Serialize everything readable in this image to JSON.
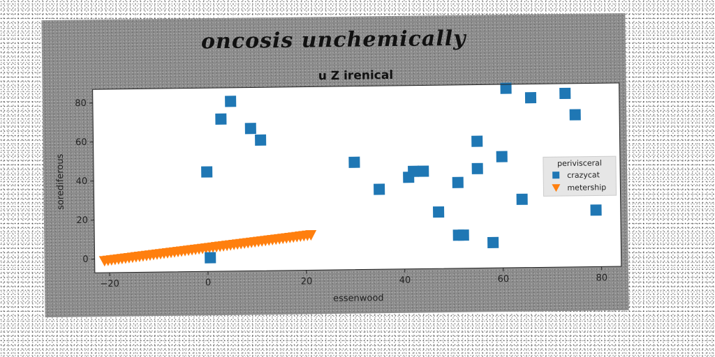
{
  "chart_data": {
    "type": "scatter",
    "suptitle": "oncosis unchemically",
    "title": "u Z irenical",
    "xlabel": "essenwood",
    "ylabel": "sorediferous",
    "xlim": [
      -23,
      84
    ],
    "ylim": [
      -7,
      87
    ],
    "xticks": [
      -20,
      0,
      20,
      40,
      60,
      80
    ],
    "yticks": [
      0,
      20,
      40,
      60,
      80
    ],
    "legend": {
      "title": "perivisceral",
      "placement": "center-right"
    },
    "series": [
      {
        "name": "crazycat",
        "marker": "square",
        "color": "#1f77b4",
        "points": [
          [
            0,
            44
          ],
          [
            3,
            71
          ],
          [
            5,
            80
          ],
          [
            9,
            66
          ],
          [
            11,
            60
          ],
          [
            0.5,
            0
          ],
          [
            30,
            48
          ],
          [
            35,
            34
          ],
          [
            41,
            40
          ],
          [
            42,
            43
          ],
          [
            44,
            43
          ],
          [
            47,
            22
          ],
          [
            51,
            37
          ],
          [
            51,
            10
          ],
          [
            52,
            10
          ],
          [
            55,
            58
          ],
          [
            55,
            44
          ],
          [
            58,
            6
          ],
          [
            60,
            50
          ],
          [
            61,
            85
          ],
          [
            64,
            28
          ],
          [
            66,
            80
          ],
          [
            73,
            82
          ],
          [
            75,
            71
          ],
          [
            79,
            22
          ]
        ]
      },
      {
        "name": "metership",
        "marker": "triangle-down",
        "color": "#ff7f0e",
        "line_from": [
          -21,
          -1
        ],
        "line_to": [
          21,
          11
        ],
        "points_count": 60
      }
    ]
  }
}
